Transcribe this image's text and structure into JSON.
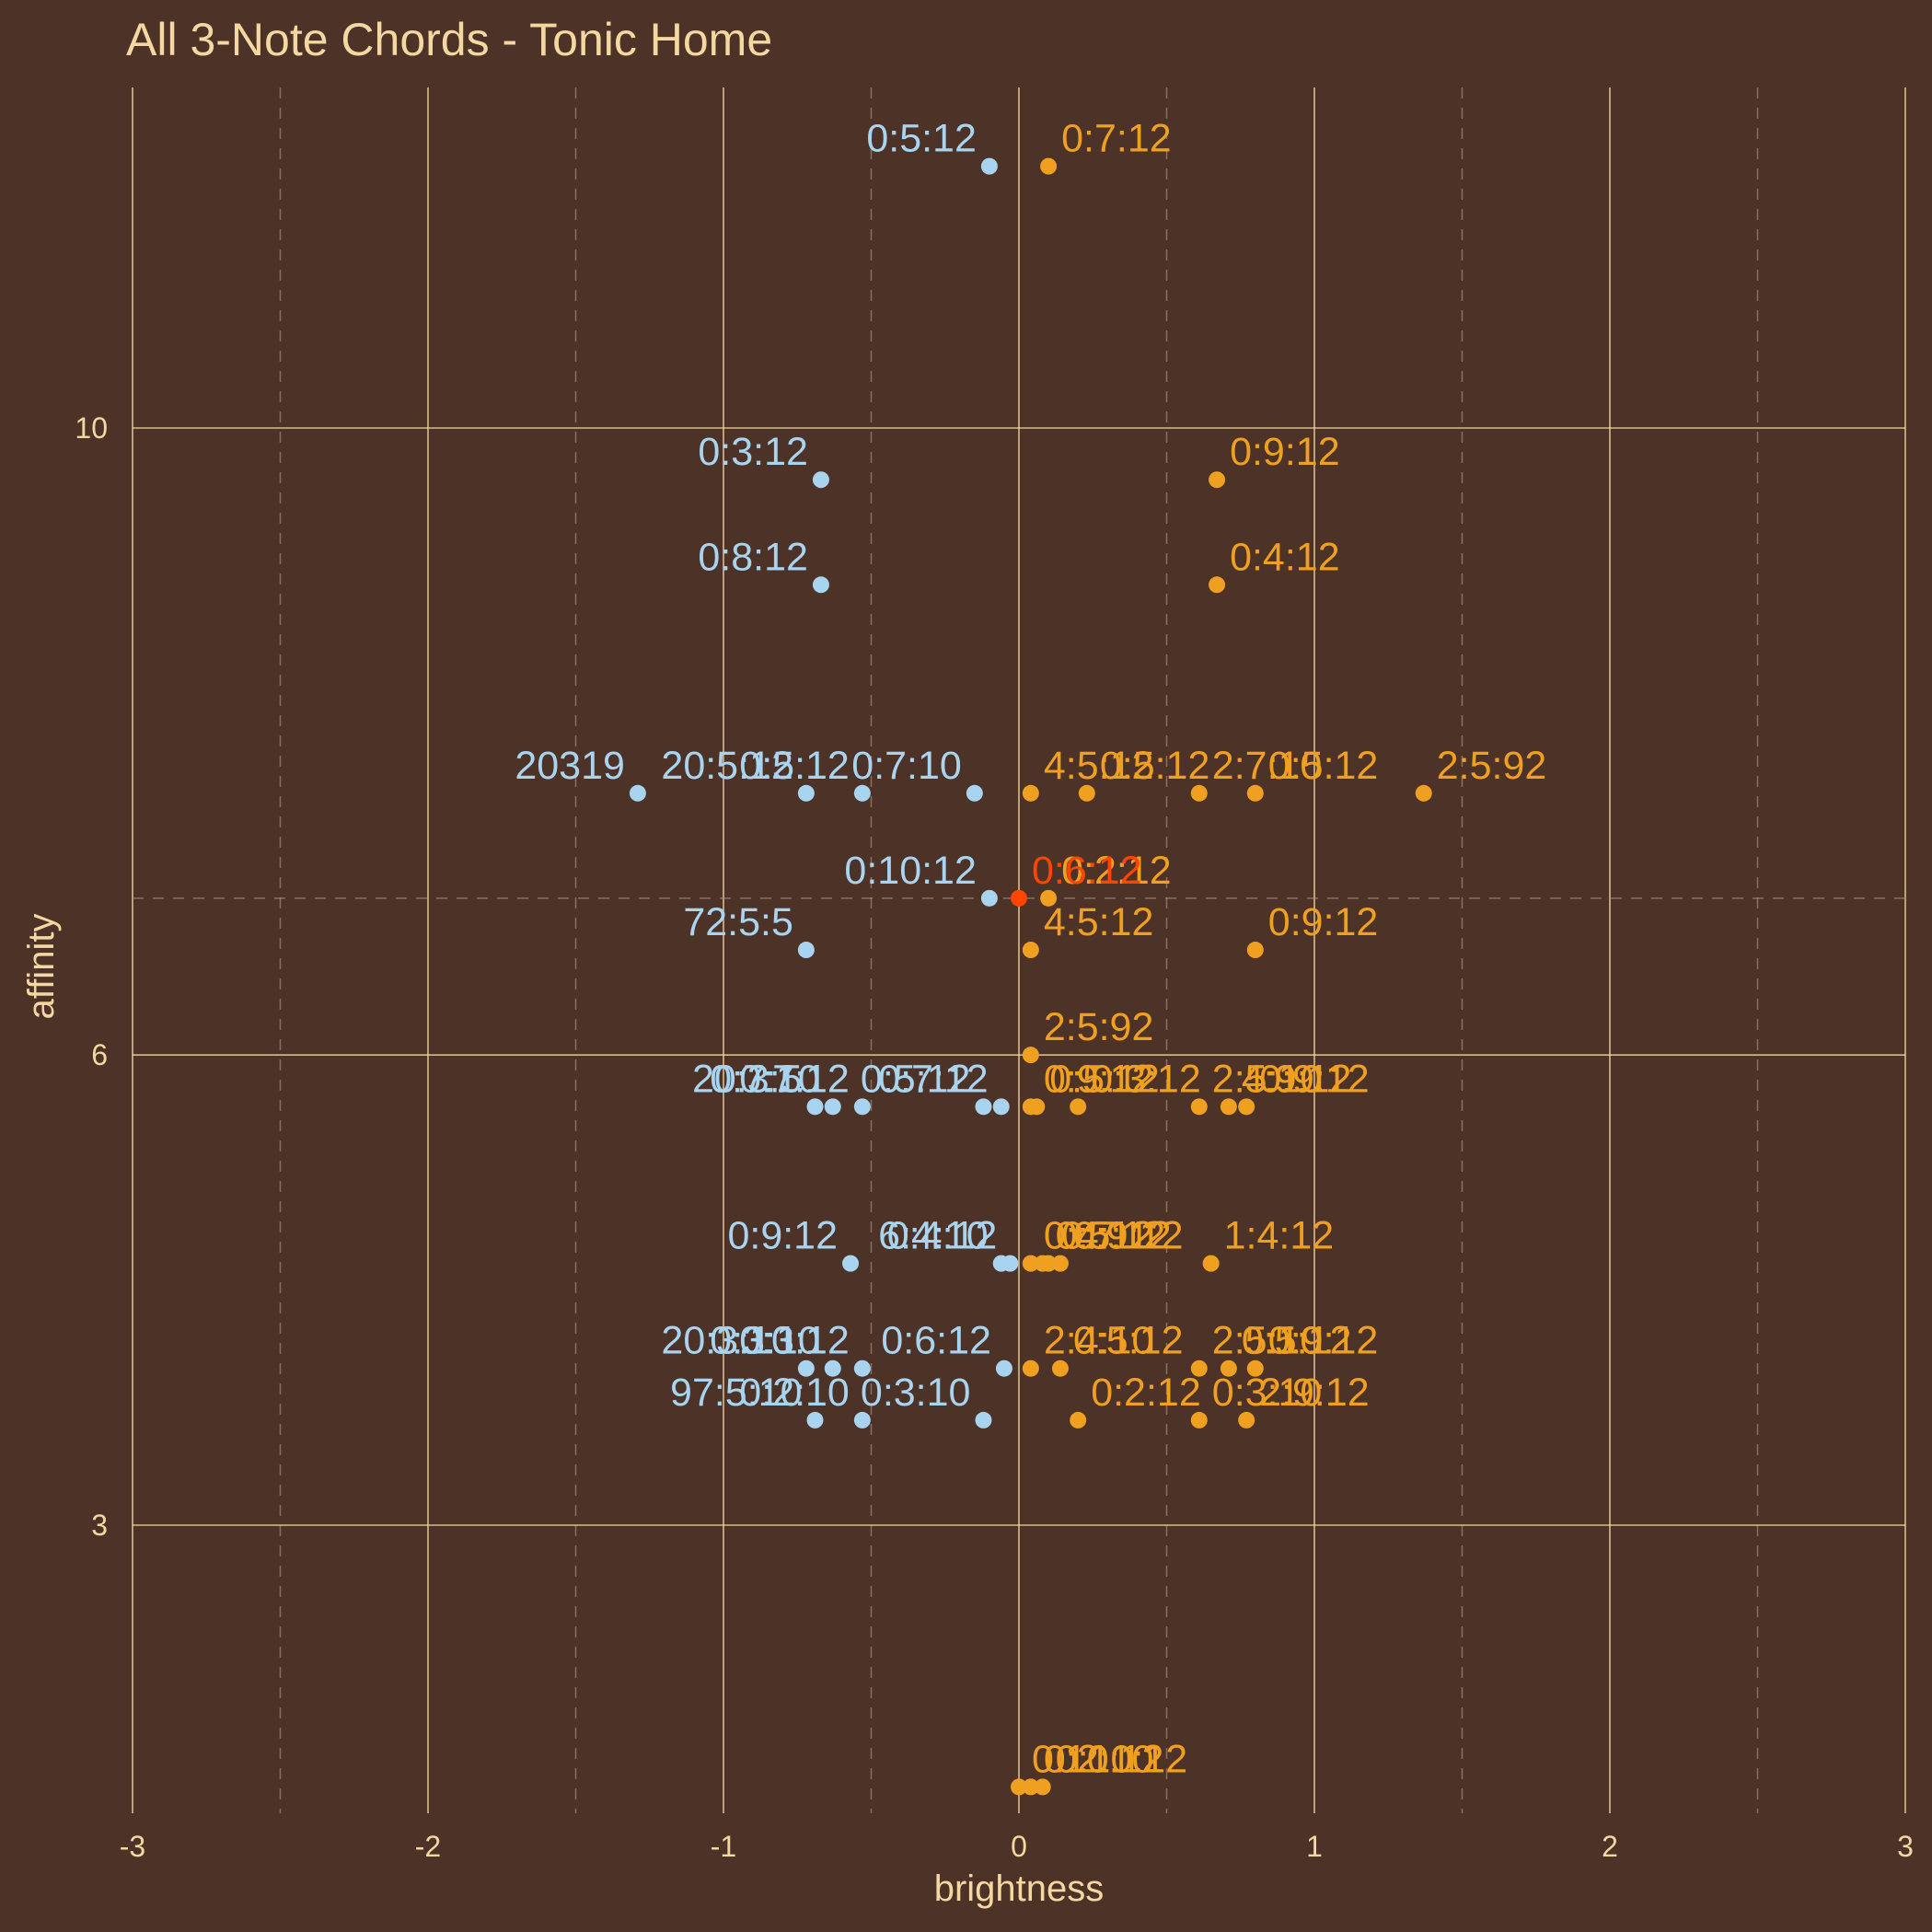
{
  "chart_data": {
    "type": "scatter",
    "title": "All 3-Note Chords - Tonic Home",
    "xlabel": "brightness",
    "ylabel": "affinity",
    "xlim": [
      -3,
      3
    ],
    "ylim": [
      1.25,
      12.3
    ],
    "x_ticks": [
      -3,
      -2,
      -1,
      0,
      1,
      2,
      3
    ],
    "x_tick_labels": [
      "-3",
      "-2",
      "-1",
      "0",
      "1",
      "2",
      "3"
    ],
    "y_ticks": [
      3,
      6,
      10
    ],
    "y_tick_labels": [
      "3",
      "6",
      "10"
    ],
    "reference_lines": {
      "x": 0,
      "y": 7
    },
    "grid": true,
    "legend": "none",
    "colors": {
      "background": "#4d3227",
      "text": "#f5d7a1",
      "dark": "#a8d4f0",
      "bright": "#f0a020",
      "neutral": "#ff4500"
    },
    "series": [
      {
        "color": "#a8d4f0",
        "points": [
          {
            "x": -0.1,
            "y": 11.67,
            "label": "0:5:12"
          },
          {
            "x": -0.67,
            "y": 9.67,
            "label": "0:3:12"
          },
          {
            "x": -0.67,
            "y": 9.0,
            "label": "0:8:12"
          },
          {
            "x": -1.29,
            "y": 7.67,
            "label": "20319"
          },
          {
            "x": -0.72,
            "y": 7.67,
            "label": "20:5:12"
          },
          {
            "x": -0.53,
            "y": 7.67,
            "label": "0:5:12"
          },
          {
            "x": -0.15,
            "y": 7.67,
            "label": "0:7:10"
          },
          {
            "x": -0.1,
            "y": 7.0,
            "label": "0:10:12"
          },
          {
            "x": -0.72,
            "y": 6.67,
            "label": "72:5:5"
          },
          {
            "x": -0.69,
            "y": 5.67,
            "label": "20:3:5"
          },
          {
            "x": -0.63,
            "y": 5.67,
            "label": "0:7:10"
          },
          {
            "x": -0.53,
            "y": 5.67,
            "label": "0:7:12"
          },
          {
            "x": -0.12,
            "y": 5.67,
            "label": "0:5:12"
          },
          {
            "x": -0.06,
            "y": 5.67,
            "label": "0:7:12"
          },
          {
            "x": -0.57,
            "y": 4.67,
            "label": "0:9:12"
          },
          {
            "x": -0.06,
            "y": 4.67,
            "label": "6:4:10"
          },
          {
            "x": -0.03,
            "y": 4.67,
            "label": "0:4:12"
          },
          {
            "x": -0.72,
            "y": 4.0,
            "label": "20:3:10"
          },
          {
            "x": -0.63,
            "y": 4.0,
            "label": "0:3:10"
          },
          {
            "x": -0.53,
            "y": 4.0,
            "label": "0:3:12"
          },
          {
            "x": -0.05,
            "y": 4.0,
            "label": "0:6:12"
          },
          {
            "x": -0.69,
            "y": 3.67,
            "label": "97:5:10"
          },
          {
            "x": -0.53,
            "y": 3.67,
            "label": "0:2:10"
          },
          {
            "x": -0.12,
            "y": 3.67,
            "label": "0:3:10"
          }
        ]
      },
      {
        "color": "#f0a020",
        "points": [
          {
            "x": 0.1,
            "y": 11.67,
            "label": "0:7:12"
          },
          {
            "x": 0.67,
            "y": 9.67,
            "label": "0:9:12"
          },
          {
            "x": 0.67,
            "y": 9.0,
            "label": "0:4:12"
          },
          {
            "x": 0.04,
            "y": 7.67,
            "label": "4:5:12"
          },
          {
            "x": 0.23,
            "y": 7.67,
            "label": "0:5:12"
          },
          {
            "x": 0.61,
            "y": 7.67,
            "label": "2:7:10"
          },
          {
            "x": 0.8,
            "y": 7.67,
            "label": "0:5:12"
          },
          {
            "x": 1.37,
            "y": 7.67,
            "label": "2:5:92"
          },
          {
            "x": 0.1,
            "y": 7.0,
            "label": "0:2:12"
          },
          {
            "x": 0.04,
            "y": 6.67,
            "label": "4:5:12"
          },
          {
            "x": 0.8,
            "y": 6.67,
            "label": "0:9:12"
          },
          {
            "x": 0.04,
            "y": 6.0,
            "label": "2:5:92"
          },
          {
            "x": 0.04,
            "y": 5.67,
            "label": "0:9:12"
          },
          {
            "x": 0.06,
            "y": 5.67,
            "label": "0:5:12"
          },
          {
            "x": 0.2,
            "y": 5.67,
            "label": "0:3:12"
          },
          {
            "x": 0.61,
            "y": 5.67,
            "label": "2:5:10"
          },
          {
            "x": 0.71,
            "y": 5.67,
            "label": "4:9:12"
          },
          {
            "x": 0.77,
            "y": 5.67,
            "label": "0:9:12"
          },
          {
            "x": 0.04,
            "y": 4.67,
            "label": "0:4:12"
          },
          {
            "x": 0.08,
            "y": 4.67,
            "label": "0:5:12"
          },
          {
            "x": 0.1,
            "y": 4.67,
            "label": "0:7:12"
          },
          {
            "x": 0.14,
            "y": 4.67,
            "label": "0:9:12"
          },
          {
            "x": 0.65,
            "y": 4.67,
            "label": "1:4:12"
          },
          {
            "x": 0.04,
            "y": 4.0,
            "label": "2:4:10"
          },
          {
            "x": 0.14,
            "y": 4.0,
            "label": "0:5:12"
          },
          {
            "x": 0.61,
            "y": 4.0,
            "label": "2:5:10"
          },
          {
            "x": 0.71,
            "y": 4.0,
            "label": "0:5:12"
          },
          {
            "x": 0.8,
            "y": 4.0,
            "label": "0:9:12"
          },
          {
            "x": 0.2,
            "y": 3.67,
            "label": "0:2:12"
          },
          {
            "x": 0.61,
            "y": 3.67,
            "label": "0:3:10"
          },
          {
            "x": 0.77,
            "y": 3.67,
            "label": "2:9:12"
          },
          {
            "x": 0.0,
            "y": 1.33,
            "label": "0:10:12"
          },
          {
            "x": 0.04,
            "y": 1.33,
            "label": "0:2:10"
          },
          {
            "x": 0.08,
            "y": 1.33,
            "label": "0:10:12"
          }
        ]
      },
      {
        "color": "#ff4500",
        "points": [
          {
            "x": 0.0,
            "y": 7.0,
            "label": "0:6:12"
          }
        ]
      }
    ]
  }
}
